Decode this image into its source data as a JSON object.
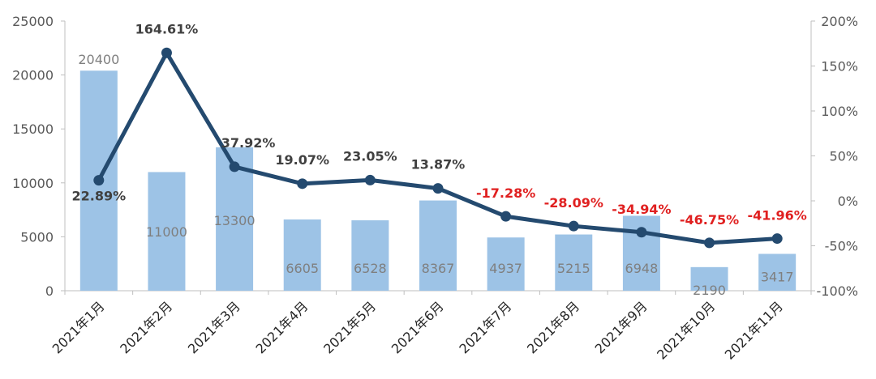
{
  "chart_data": {
    "type": "bar+line",
    "categories": [
      "2021年1月",
      "2021年2月",
      "2021年3月",
      "2021年4月",
      "2021年5月",
      "2021年6月",
      "2021年7月",
      "2021年8月",
      "2021年9月",
      "2021年10月",
      "2021年11月"
    ],
    "bar_series": {
      "values": [
        20400,
        11000,
        13300,
        6605,
        6528,
        8367,
        4937,
        5215,
        6948,
        2190,
        3417
      ],
      "labels": [
        "20400",
        "11000",
        "13300",
        "6605",
        "6528",
        "8367",
        "4937",
        "5215",
        "6948",
        "2190",
        "3417"
      ],
      "color": "#9dc3e6",
      "label_color": "#7f7f7f"
    },
    "line_series": {
      "values": [
        22.89,
        164.61,
        37.92,
        19.07,
        23.05,
        13.87,
        -17.28,
        -28.09,
        -34.94,
        -46.75,
        -41.96
      ],
      "labels": [
        "22.89%",
        "164.61%",
        "37.92%",
        "19.07%",
        "23.05%",
        "13.87%",
        "-17.28%",
        "-28.09%",
        "-34.94%",
        "-46.75%",
        "-41.96%"
      ],
      "color": "#244a6f",
      "positive_label_color": "#404040",
      "negative_label_color": "#e02020"
    },
    "y_left": {
      "min": 0,
      "max": 25000,
      "ticks": [
        "0",
        "5000",
        "10000",
        "15000",
        "20000",
        "25000"
      ]
    },
    "y_right": {
      "min": -100,
      "max": 200,
      "ticks": [
        "-100%",
        "-50%",
        "0%",
        "50%",
        "100%",
        "150%",
        "200%"
      ]
    },
    "grid": false,
    "legend": "none"
  }
}
